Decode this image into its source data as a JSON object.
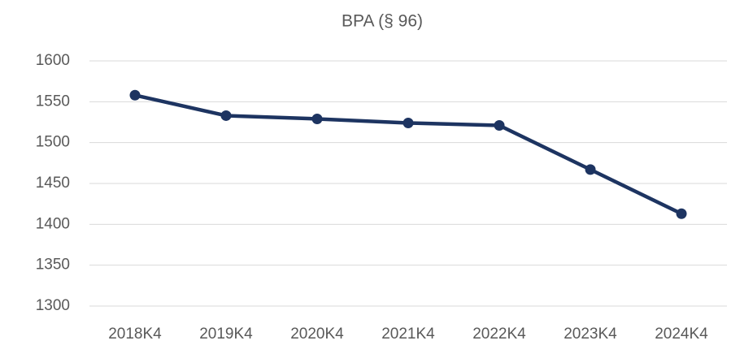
{
  "chart_data": {
    "type": "line",
    "title": "BPA (§ 96)",
    "categories": [
      "2018K4",
      "2019K4",
      "2020K4",
      "2021K4",
      "2022K4",
      "2023K4",
      "2024K4"
    ],
    "series": [
      {
        "name": "BPA",
        "color": "#1d3461",
        "values": [
          1558,
          1533,
          1529,
          1524,
          1521,
          1467,
          1413
        ]
      }
    ],
    "ylim": [
      1300,
      1600
    ],
    "yticks": [
      1300,
      1350,
      1400,
      1450,
      1500,
      1550,
      1600
    ],
    "grid": true
  }
}
